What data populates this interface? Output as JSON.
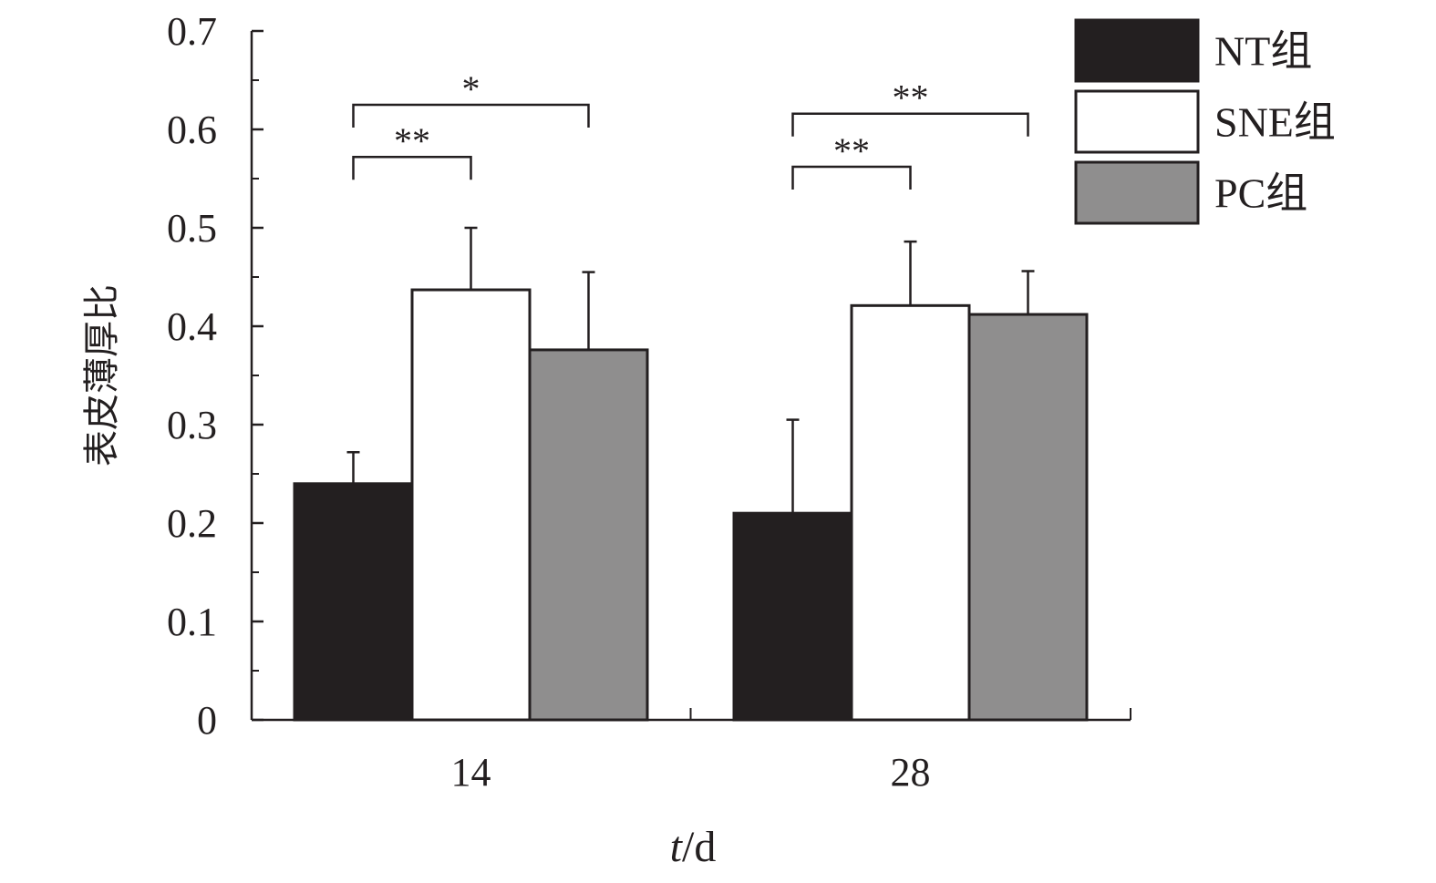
{
  "chart_data": {
    "type": "bar",
    "categories": [
      "14",
      "28"
    ],
    "series": [
      {
        "name": "NT组",
        "color": "#231f20",
        "values": [
          0.24,
          0.21
        ],
        "errors": [
          0.032,
          0.095
        ]
      },
      {
        "name": "SNE组",
        "color": "#ffffff",
        "values": [
          0.437,
          0.421
        ],
        "errors": [
          0.063,
          0.065
        ]
      },
      {
        "name": "PC组",
        "color": "#8f8e8e",
        "values": [
          0.376,
          0.412
        ],
        "errors": [
          0.079,
          0.044
        ]
      }
    ],
    "xlabel": {
      "italic": "t",
      "rest": "/d"
    },
    "ylabel": "表皮薄厚比",
    "ylim": [
      0,
      0.7
    ],
    "yticks": [
      "0",
      "0.1",
      "0.2",
      "0.3",
      "0.4",
      "0.5",
      "0.6",
      "0.7"
    ],
    "legend_position": "top-right",
    "significance": [
      {
        "category": 0,
        "from_series": 0,
        "to_series": 1,
        "label": "**",
        "level": 0.572
      },
      {
        "category": 0,
        "from_series": 0,
        "to_series": 2,
        "label": "*",
        "level": 0.625
      },
      {
        "category": 1,
        "from_series": 0,
        "to_series": 1,
        "label": "**",
        "level": 0.562
      },
      {
        "category": 1,
        "from_series": 0,
        "to_series": 2,
        "label": "**",
        "level": 0.616
      }
    ]
  }
}
